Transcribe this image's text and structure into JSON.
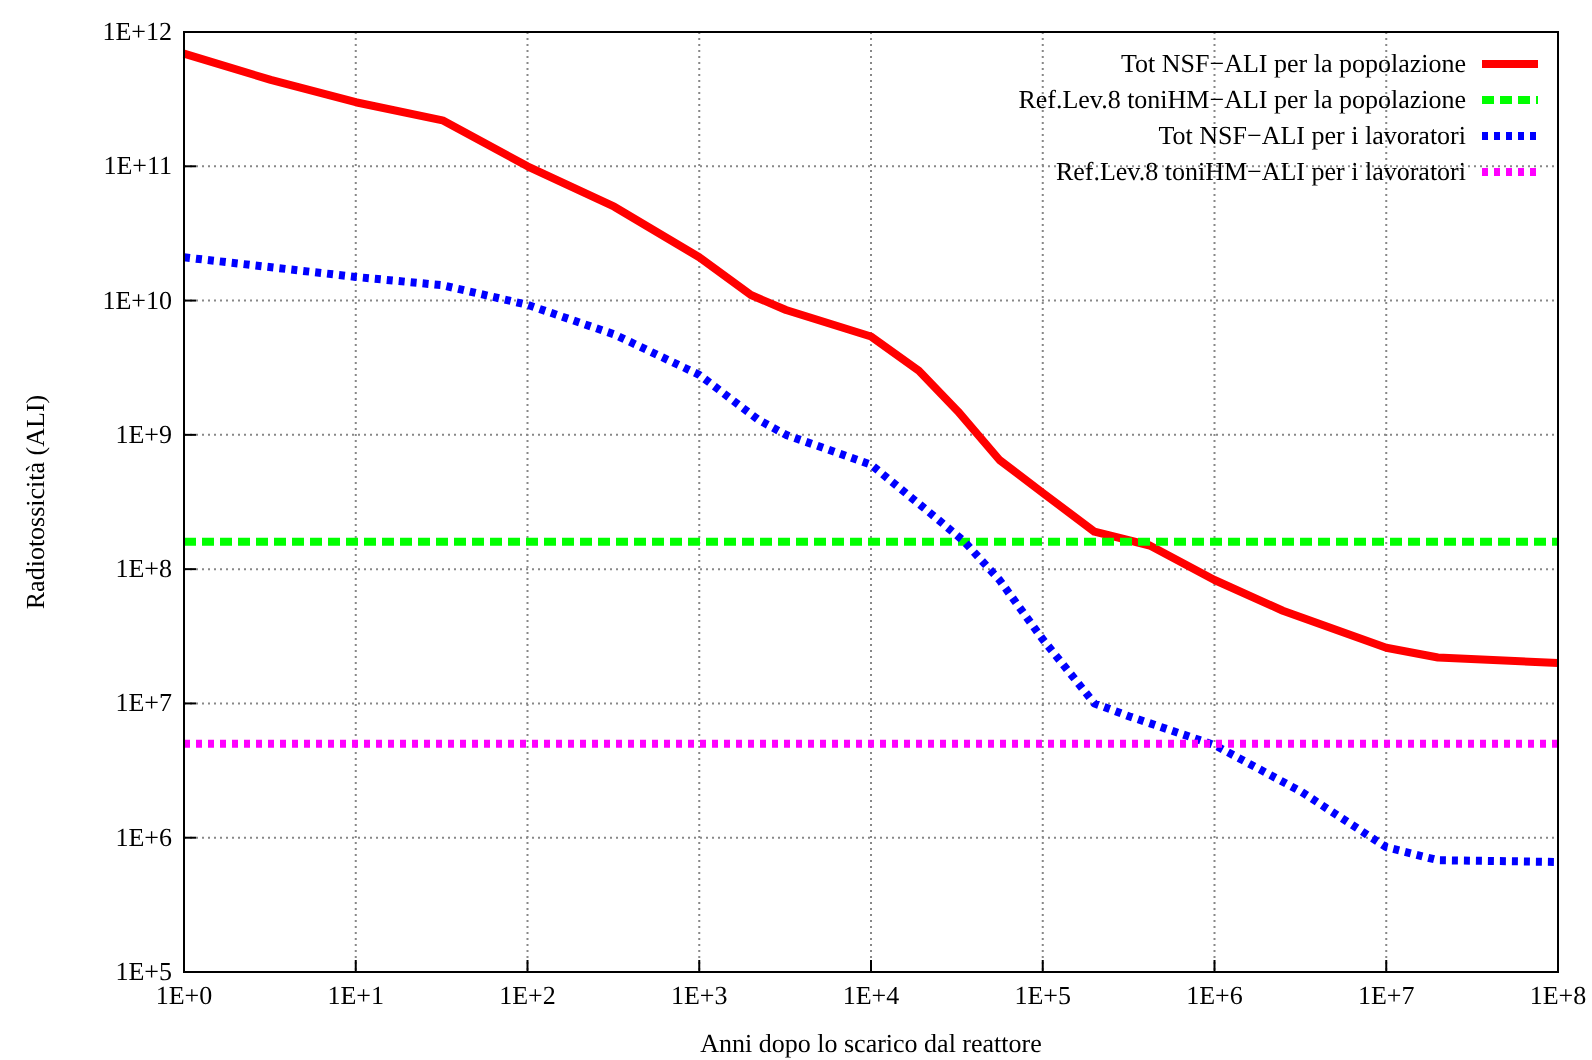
{
  "chart_data": {
    "type": "line",
    "xlabel": "Anni dopo lo scarico dal reattore",
    "ylabel": "Radiotossicità (ALI)",
    "log": "xy",
    "grid": true,
    "legend": "top right",
    "xlim": [
      1,
      100000000
    ],
    "ylim": [
      100000,
      1000000000000
    ],
    "xticks": [
      {
        "value": 1,
        "label": "1E+0"
      },
      {
        "value": 10,
        "label": "1E+1"
      },
      {
        "value": 100,
        "label": "1E+2"
      },
      {
        "value": 1000,
        "label": "1E+3"
      },
      {
        "value": 10000,
        "label": "1E+4"
      },
      {
        "value": 100000,
        "label": "1E+5"
      },
      {
        "value": 1000000,
        "label": "1E+6"
      },
      {
        "value": 10000000,
        "label": "1E+7"
      },
      {
        "value": 100000000,
        "label": "1E+8"
      }
    ],
    "yticks": [
      {
        "value": 100000,
        "label": "1E+5"
      },
      {
        "value": 1000000,
        "label": "1E+6"
      },
      {
        "value": 10000000,
        "label": "1E+7"
      },
      {
        "value": 100000000,
        "label": "1E+8"
      },
      {
        "value": 1000000000,
        "label": "1E+9"
      },
      {
        "value": 10000000000,
        "label": "1E+10"
      },
      {
        "value": 100000000000,
        "label": "1E+11"
      },
      {
        "value": 1000000000000,
        "label": "1E+12"
      }
    ],
    "series": [
      {
        "name": "Tot NSF−ALI per la popolazione",
        "color": "#ff0000",
        "line_style": "solid",
        "x": [
          1,
          3.2,
          10,
          32,
          100,
          320,
          1000,
          2000,
          3200,
          10000,
          19000,
          32000,
          56000,
          100000,
          200000,
          420000,
          1000000,
          2500000,
          10000000,
          20000000,
          100000000
        ],
        "values": [
          690000000000,
          440000000000,
          300000000000,
          220000000000,
          100000000000,
          50000000000,
          21000000000,
          11000000000,
          8500000000,
          5400000000,
          3000000000,
          1500000000,
          650000000,
          370000000,
          190000000,
          150000000,
          83000000,
          49000000,
          26000000,
          22000000,
          20000000
        ]
      },
      {
        "name": "Ref.Lev.8 toniHM−ALI per la popolazione",
        "color": "#00ff00",
        "line_style": "dashed",
        "x": [
          1,
          100000000
        ],
        "values": [
          160000000,
          160000000
        ]
      },
      {
        "name": "Tot NSF−ALI per i lavoratori",
        "color": "#0000ff",
        "line_style": "dotted",
        "x": [
          1,
          10,
          32,
          100,
          320,
          1000,
          2200,
          3200,
          10000,
          25000,
          35000,
          56000,
          100000,
          200000,
          320000,
          1000000,
          3200000,
          10000000,
          20000000,
          100000000
        ],
        "values": [
          21000000000,
          15000000000,
          13000000000,
          9300000000,
          5600000000,
          2800000000,
          1300000000,
          1000000000,
          600000000,
          230000000,
          160000000,
          83000000,
          30000000,
          10000000,
          8000000,
          4900000,
          2200000,
          850000,
          680000,
          660000
        ]
      },
      {
        "name": "Ref.Lev.8 toniHM−ALI per i lavoratori",
        "color": "#ff00ff",
        "line_style": "dotted",
        "x": [
          1,
          100000000
        ],
        "values": [
          5000000,
          5000000
        ]
      }
    ]
  }
}
